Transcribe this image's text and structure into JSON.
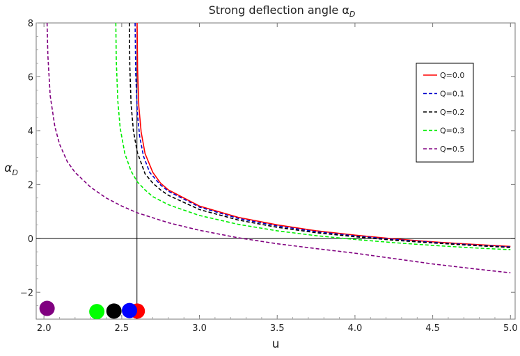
{
  "chart_data": {
    "type": "line",
    "title": "Strong deflection angle αD",
    "title_main": "Strong deflection angle α",
    "title_sub": "D",
    "xlabel": "u",
    "ylabel_main": "α",
    "ylabel_sub": "D",
    "xlim": [
      1.95,
      5.03
    ],
    "ylim": [
      -3.0,
      8.0
    ],
    "x_ticks": [
      "2.0",
      "2.5",
      "3.0",
      "3.5",
      "4.0",
      "4.5",
      "5.0"
    ],
    "x_tick_values": [
      2.0,
      2.5,
      3.0,
      3.5,
      4.0,
      4.5,
      5.0
    ],
    "y_ticks": [
      "-2",
      "0",
      "2",
      "4",
      "6",
      "8"
    ],
    "y_tick_values": [
      -2,
      0,
      2,
      4,
      6,
      8
    ],
    "grid": false,
    "legend_position": "top-right",
    "reference_vertical_line_x": 2.598,
    "series": [
      {
        "name": "Q=0.0",
        "color": "#ff0000",
        "dash": "solid",
        "x": [
          2.599,
          2.602,
          2.61,
          2.625,
          2.65,
          2.7,
          2.75,
          2.8,
          3.0,
          3.25,
          3.5,
          3.75,
          4.0,
          4.25,
          4.5,
          4.75,
          5.0
        ],
        "y": [
          8.0,
          6.3,
          4.9,
          3.95,
          3.15,
          2.45,
          2.05,
          1.8,
          1.2,
          0.78,
          0.5,
          0.28,
          0.12,
          -0.02,
          -0.13,
          -0.22,
          -0.3
        ]
      },
      {
        "name": "Q=0.1",
        "color": "#0000cc",
        "dash": "dashed",
        "x": [
          2.586,
          2.59,
          2.6,
          2.615,
          2.64,
          2.68,
          2.75,
          2.8,
          3.0,
          3.25,
          3.5,
          3.75,
          4.0,
          4.25,
          4.5,
          4.75,
          5.0
        ],
        "y": [
          8.0,
          6.1,
          4.7,
          3.8,
          3.05,
          2.45,
          1.98,
          1.75,
          1.16,
          0.74,
          0.46,
          0.25,
          0.09,
          -0.04,
          -0.15,
          -0.24,
          -0.32
        ]
      },
      {
        "name": "Q=0.2",
        "color": "#000000",
        "dash": "dashed",
        "x": [
          2.549,
          2.552,
          2.56,
          2.575,
          2.6,
          2.65,
          2.7,
          2.75,
          2.8,
          3.0,
          3.25,
          3.5,
          3.75,
          4.0,
          4.25,
          4.5,
          4.75,
          5.0
        ],
        "y": [
          8.0,
          6.4,
          5.0,
          4.0,
          3.2,
          2.4,
          2.05,
          1.8,
          1.6,
          1.07,
          0.68,
          0.41,
          0.21,
          0.06,
          -0.07,
          -0.17,
          -0.26,
          -0.34
        ]
      },
      {
        "name": "Q=0.3",
        "color": "#00ee00",
        "dash": "dashed",
        "x": [
          2.462,
          2.465,
          2.475,
          2.49,
          2.52,
          2.56,
          2.6,
          2.65,
          2.7,
          2.8,
          3.0,
          3.25,
          3.5,
          3.75,
          4.0,
          4.25,
          4.5,
          4.75,
          5.0
        ],
        "y": [
          8.0,
          6.6,
          5.1,
          4.1,
          3.15,
          2.5,
          2.1,
          1.8,
          1.55,
          1.25,
          0.85,
          0.52,
          0.28,
          0.1,
          -0.04,
          -0.16,
          -0.26,
          -0.35,
          -0.42
        ]
      },
      {
        "name": "Q=0.5",
        "color": "#800080",
        "dash": "dashed",
        "x": [
          2.02,
          2.025,
          2.04,
          2.07,
          2.1,
          2.15,
          2.2,
          2.3,
          2.4,
          2.5,
          2.6,
          2.8,
          3.0,
          3.25,
          3.5,
          3.75,
          4.0,
          4.25,
          4.5,
          4.75,
          5.0
        ],
        "y": [
          8.0,
          6.8,
          5.3,
          4.15,
          3.5,
          2.85,
          2.45,
          1.9,
          1.5,
          1.2,
          0.95,
          0.58,
          0.3,
          0.02,
          -0.2,
          -0.38,
          -0.55,
          -0.75,
          -0.95,
          -1.12,
          -1.28
        ]
      }
    ],
    "markers": [
      {
        "series": "Q=0.0",
        "x": 2.6,
        "y": -2.7,
        "color": "#ff0000"
      },
      {
        "series": "Q=0.1",
        "x": 2.55,
        "y": -2.68,
        "color": "#0000ff"
      },
      {
        "series": "Q=0.2",
        "x": 2.45,
        "y": -2.7,
        "color": "#000000"
      },
      {
        "series": "Q=0.3",
        "x": 2.34,
        "y": -2.72,
        "color": "#00ff00"
      },
      {
        "series": "Q=0.5",
        "x": 2.02,
        "y": -2.6,
        "color": "#800080"
      }
    ]
  }
}
